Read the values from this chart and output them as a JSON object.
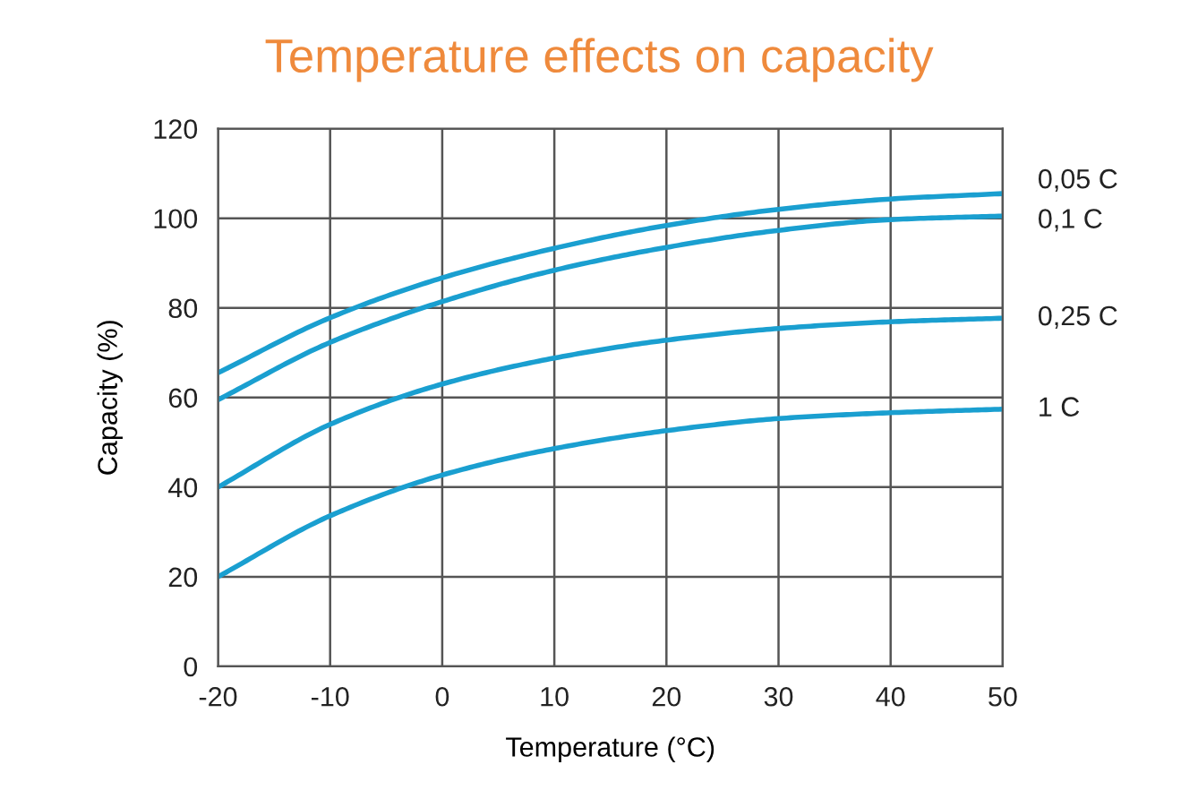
{
  "chart_data": {
    "type": "line",
    "title": "Temperature effects on capacity",
    "xlabel": "Temperature (°C)",
    "ylabel": "Capacity (%)",
    "x": [
      -20,
      -10,
      0,
      10,
      20,
      30,
      40,
      50
    ],
    "series": [
      {
        "name": "0,05 C",
        "color": "#1a9fd0",
        "values": [
          65.5,
          77.8,
          86.7,
          93.3,
          98.4,
          102,
          104.3,
          105.5
        ]
      },
      {
        "name": "0,1 C",
        "color": "#1a9fd0",
        "values": [
          59.5,
          72.3,
          81.4,
          88.4,
          93.5,
          97.3,
          99.7,
          100.5
        ]
      },
      {
        "name": "0,25 C",
        "color": "#1a9fd0",
        "values": [
          40,
          54,
          63,
          68.8,
          72.8,
          75.4,
          76.9,
          77.7
        ]
      },
      {
        "name": "1 C",
        "color": "#1a9fd0",
        "values": [
          20,
          33.6,
          42.7,
          48.6,
          52.6,
          55.3,
          56.6,
          57.4
        ]
      }
    ],
    "xlim": [
      -20,
      50
    ],
    "xticks": [
      -20,
      -10,
      0,
      10,
      20,
      30,
      40,
      50
    ],
    "ylim": [
      0,
      120
    ],
    "yticks": [
      0,
      20,
      40,
      60,
      80,
      100,
      120
    ],
    "grid": true,
    "legend": false,
    "marker": "none",
    "line_style": "solid"
  }
}
